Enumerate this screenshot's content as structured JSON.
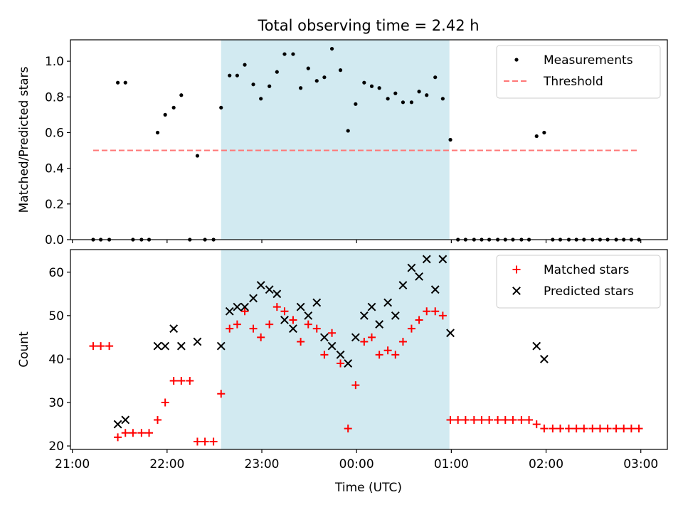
{
  "chart_data": {
    "type": "scatter",
    "title": "Total observing time = 2.42 h",
    "xlabel": "Time (UTC)",
    "x_unit": "hours (UTC clock, values above 24 are after midnight)",
    "x_range": [
      20.98,
      27.28
    ],
    "x_ticks": [
      {
        "value": 21,
        "label": "21:00"
      },
      {
        "value": 22,
        "label": "22:00"
      },
      {
        "value": 23,
        "label": "23:00"
      },
      {
        "value": 24,
        "label": "00:00"
      },
      {
        "value": 25,
        "label": "01:00"
      },
      {
        "value": 26,
        "label": "02:00"
      },
      {
        "value": 27,
        "label": "03:00"
      }
    ],
    "highlight_span": {
      "from": 22.57,
      "to": 24.98,
      "color": "#add8e6"
    },
    "panels": [
      {
        "ylabel": "Matched/Predicted stars",
        "ylim": [
          0,
          1.12
        ],
        "yticks": [
          "0.0",
          "0.2",
          "0.4",
          "0.6",
          "0.8",
          "1.0"
        ],
        "ytick_values": [
          0,
          0.2,
          0.4,
          0.6,
          0.8,
          1.0
        ],
        "legend_position": "upper right",
        "threshold": {
          "name": "Threshold",
          "y": 0.5,
          "x_from": 21.22,
          "x_to": 26.97,
          "color": "#ff7777"
        },
        "series": [
          {
            "name": "Measurements",
            "marker": "dot",
            "color": "#000000",
            "points": [
              [
                21.22,
                0
              ],
              [
                21.3,
                0
              ],
              [
                21.39,
                0
              ],
              [
                21.48,
                0.88
              ],
              [
                21.56,
                0.88
              ],
              [
                21.64,
                0
              ],
              [
                21.73,
                0
              ],
              [
                21.81,
                0
              ],
              [
                21.9,
                0.6
              ],
              [
                21.98,
                0.7
              ],
              [
                22.07,
                0.74
              ],
              [
                22.15,
                0.81
              ],
              [
                22.24,
                0
              ],
              [
                22.32,
                0.47
              ],
              [
                22.4,
                0
              ],
              [
                22.49,
                0
              ],
              [
                22.57,
                0.74
              ],
              [
                22.66,
                0.92
              ],
              [
                22.74,
                0.92
              ],
              [
                22.82,
                0.98
              ],
              [
                22.91,
                0.87
              ],
              [
                22.99,
                0.79
              ],
              [
                23.08,
                0.86
              ],
              [
                23.16,
                0.94
              ],
              [
                23.24,
                1.04
              ],
              [
                23.33,
                1.04
              ],
              [
                23.41,
                0.85
              ],
              [
                23.49,
                0.96
              ],
              [
                23.58,
                0.89
              ],
              [
                23.66,
                0.91
              ],
              [
                23.74,
                1.07
              ],
              [
                23.83,
                0.95
              ],
              [
                23.91,
                0.61
              ],
              [
                23.99,
                0.76
              ],
              [
                24.08,
                0.88
              ],
              [
                24.16,
                0.86
              ],
              [
                24.24,
                0.85
              ],
              [
                24.33,
                0.79
              ],
              [
                24.41,
                0.82
              ],
              [
                24.49,
                0.77
              ],
              [
                24.58,
                0.77
              ],
              [
                24.66,
                0.83
              ],
              [
                24.74,
                0.81
              ],
              [
                24.83,
                0.91
              ],
              [
                24.91,
                0.79
              ],
              [
                24.99,
                0.56
              ],
              [
                25.07,
                0
              ],
              [
                25.15,
                0
              ],
              [
                25.24,
                0
              ],
              [
                25.32,
                0
              ],
              [
                25.4,
                0
              ],
              [
                25.49,
                0
              ],
              [
                25.57,
                0
              ],
              [
                25.65,
                0
              ],
              [
                25.74,
                0
              ],
              [
                25.82,
                0
              ],
              [
                25.9,
                0.58
              ],
              [
                25.98,
                0.6
              ],
              [
                26.07,
                0
              ],
              [
                26.15,
                0
              ],
              [
                26.24,
                0
              ],
              [
                26.32,
                0
              ],
              [
                26.4,
                0
              ],
              [
                26.49,
                0
              ],
              [
                26.57,
                0
              ],
              [
                26.65,
                0
              ],
              [
                26.74,
                0
              ],
              [
                26.82,
                0
              ],
              [
                26.9,
                0
              ],
              [
                26.98,
                0
              ]
            ]
          }
        ]
      },
      {
        "ylabel": "Count",
        "ylim": [
          19.2,
          65.2
        ],
        "yticks": [
          "20",
          "30",
          "40",
          "50",
          "60"
        ],
        "ytick_values": [
          20,
          30,
          40,
          50,
          60
        ],
        "legend_position": "upper right",
        "series": [
          {
            "name": "Matched stars",
            "marker": "plus",
            "color": "#ff0000",
            "points": [
              [
                21.22,
                43
              ],
              [
                21.3,
                43
              ],
              [
                21.39,
                43
              ],
              [
                21.48,
                22
              ],
              [
                21.56,
                23
              ],
              [
                21.64,
                23
              ],
              [
                21.73,
                23
              ],
              [
                21.81,
                23
              ],
              [
                21.9,
                26
              ],
              [
                21.98,
                30
              ],
              [
                22.07,
                35
              ],
              [
                22.15,
                35
              ],
              [
                22.24,
                35
              ],
              [
                22.32,
                21
              ],
              [
                22.4,
                21
              ],
              [
                22.49,
                21
              ],
              [
                22.57,
                32
              ],
              [
                22.66,
                47
              ],
              [
                22.74,
                48
              ],
              [
                22.82,
                51
              ],
              [
                22.91,
                47
              ],
              [
                22.99,
                45
              ],
              [
                23.08,
                48
              ],
              [
                23.16,
                52
              ],
              [
                23.24,
                51
              ],
              [
                23.33,
                49
              ],
              [
                23.41,
                44
              ],
              [
                23.49,
                48
              ],
              [
                23.58,
                47
              ],
              [
                23.66,
                41
              ],
              [
                23.74,
                46
              ],
              [
                23.83,
                39
              ],
              [
                23.91,
                24
              ],
              [
                23.99,
                34
              ],
              [
                24.08,
                44
              ],
              [
                24.16,
                45
              ],
              [
                24.24,
                41
              ],
              [
                24.33,
                42
              ],
              [
                24.41,
                41
              ],
              [
                24.49,
                44
              ],
              [
                24.58,
                47
              ],
              [
                24.66,
                49
              ],
              [
                24.74,
                51
              ],
              [
                24.83,
                51
              ],
              [
                24.91,
                50
              ],
              [
                24.99,
                26
              ],
              [
                25.07,
                26
              ],
              [
                25.15,
                26
              ],
              [
                25.24,
                26
              ],
              [
                25.32,
                26
              ],
              [
                25.4,
                26
              ],
              [
                25.49,
                26
              ],
              [
                25.57,
                26
              ],
              [
                25.65,
                26
              ],
              [
                25.74,
                26
              ],
              [
                25.82,
                26
              ],
              [
                25.9,
                25
              ],
              [
                25.98,
                24
              ],
              [
                26.07,
                24
              ],
              [
                26.15,
                24
              ],
              [
                26.24,
                24
              ],
              [
                26.32,
                24
              ],
              [
                26.4,
                24
              ],
              [
                26.49,
                24
              ],
              [
                26.57,
                24
              ],
              [
                26.65,
                24
              ],
              [
                26.74,
                24
              ],
              [
                26.82,
                24
              ],
              [
                26.9,
                24
              ],
              [
                26.98,
                24
              ]
            ]
          },
          {
            "name": "Predicted stars",
            "marker": "x",
            "color": "#000000",
            "points": [
              [
                21.48,
                25
              ],
              [
                21.56,
                26
              ],
              [
                21.9,
                43
              ],
              [
                21.98,
                43
              ],
              [
                22.07,
                47
              ],
              [
                22.15,
                43
              ],
              [
                22.32,
                44
              ],
              [
                22.57,
                43
              ],
              [
                22.66,
                51
              ],
              [
                22.74,
                52
              ],
              [
                22.82,
                52
              ],
              [
                22.91,
                54
              ],
              [
                22.99,
                57
              ],
              [
                23.08,
                56
              ],
              [
                23.16,
                55
              ],
              [
                23.24,
                49
              ],
              [
                23.33,
                47
              ],
              [
                23.41,
                52
              ],
              [
                23.49,
                50
              ],
              [
                23.58,
                53
              ],
              [
                23.66,
                45
              ],
              [
                23.74,
                43
              ],
              [
                23.83,
                41
              ],
              [
                23.91,
                39
              ],
              [
                23.99,
                45
              ],
              [
                24.08,
                50
              ],
              [
                24.16,
                52
              ],
              [
                24.24,
                48
              ],
              [
                24.33,
                53
              ],
              [
                24.41,
                50
              ],
              [
                24.49,
                57
              ],
              [
                24.58,
                61
              ],
              [
                24.66,
                59
              ],
              [
                24.74,
                63
              ],
              [
                24.83,
                56
              ],
              [
                24.91,
                63
              ],
              [
                24.99,
                46
              ],
              [
                25.9,
                43
              ],
              [
                25.98,
                40
              ]
            ]
          }
        ]
      }
    ]
  }
}
